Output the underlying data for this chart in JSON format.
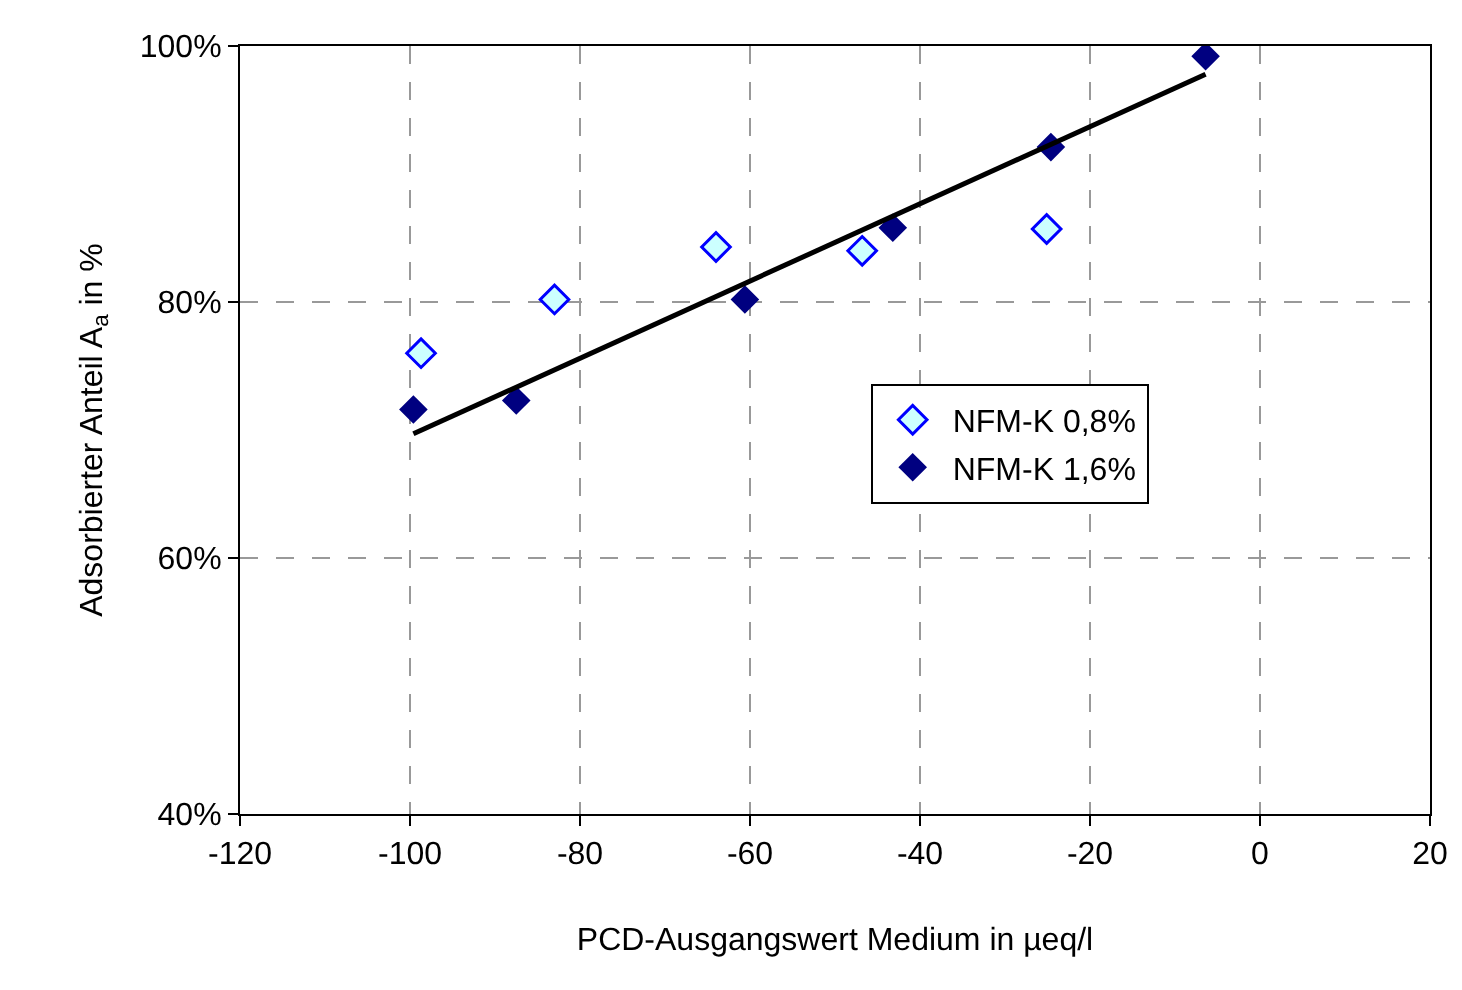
{
  "chart_data": {
    "type": "scatter",
    "xlabel": "PCD-Ausgangswert Medium in µeq/l",
    "ylabel": "Adsorbierter Anteil A$_{a}$ in %",
    "series": [
      {
        "name": "NFM-K 0,8%",
        "color": "#ccffff",
        "marker": "diamond",
        "x": [
          -98.7,
          -83.0,
          -64.0,
          -46.8,
          -25.1
        ],
        "values": [
          76,
          80.2,
          84.3,
          84.0,
          85.7
        ]
      },
      {
        "name": "NFM-K 1,6%",
        "color": "#000080",
        "marker": "diamond",
        "x": [
          -99.6,
          -87.5,
          -60.6,
          -43.2,
          -24.6,
          -6.4
        ],
        "values": [
          71.6,
          72.3,
          80.2,
          85.8,
          92.1,
          99.2
        ]
      },
      {
        "type": "line",
        "color": "#000000",
        "marker": "none",
        "x": [
          -99.6,
          -6.4
        ],
        "values": [
          69.7,
          97.8
        ]
      }
    ],
    "xlim": [
      -120,
      20
    ],
    "xticks": [
      -120,
      -100,
      -80,
      -60,
      -40,
      -20,
      0,
      20
    ],
    "ylim": [
      40,
      100
    ],
    "yticks": [
      {
        "value": 40,
        "label": "40%"
      },
      {
        "value": 60,
        "label": "60%"
      },
      {
        "value": 80,
        "label": "80%"
      },
      {
        "value": 100,
        "label": "100%"
      }
    ],
    "grid": true,
    "legend": "center right"
  }
}
